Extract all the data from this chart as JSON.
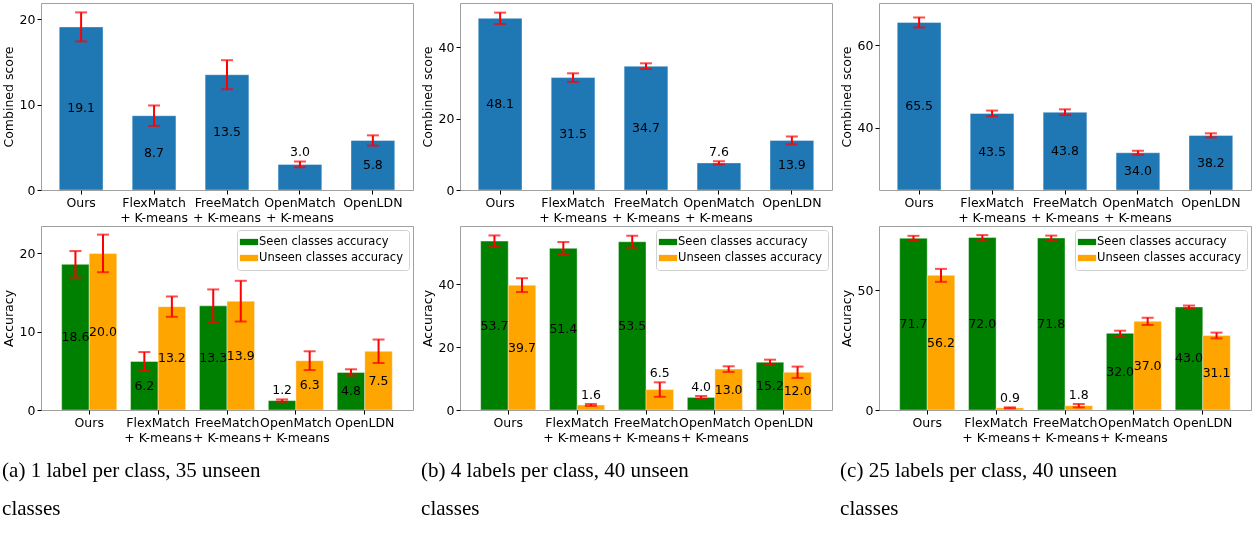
{
  "chart_data": [
    {
      "type": "bar",
      "ylabel": "Combined score",
      "categories": [
        "Ours",
        "FlexMatch\n+ K-means",
        "FreeMatch\n+ K-means",
        "OpenMatch\n+ K-means",
        "OpenLDN"
      ],
      "values": [
        19.1,
        8.7,
        13.5,
        3.0,
        5.8
      ],
      "value_labels": [
        "19.1",
        "8.7",
        "13.5",
        "3.0",
        "5.8"
      ],
      "errors": [
        1.7,
        1.2,
        1.7,
        0.35,
        0.6
      ],
      "color": "#1f77b4",
      "ylim": [
        0,
        21.9
      ],
      "yticks": [
        0,
        10,
        20
      ]
    },
    {
      "type": "bar",
      "ylabel": "Combined score",
      "categories": [
        "Ours",
        "FlexMatch\n+ K-means",
        "FreeMatch\n+ K-means",
        "OpenMatch\n+ K-means",
        "OpenLDN"
      ],
      "values": [
        48.1,
        31.5,
        34.7,
        7.6,
        13.9
      ],
      "value_labels": [
        "48.1",
        "31.5",
        "34.7",
        "7.6",
        "13.9"
      ],
      "errors": [
        1.6,
        1.2,
        0.8,
        0.45,
        1.1
      ],
      "color": "#1f77b4",
      "ylim": [
        0,
        52.4
      ],
      "yticks": [
        0,
        20,
        40
      ]
    },
    {
      "type": "bar",
      "ylabel": "Combined score",
      "categories": [
        "Ours",
        "FlexMatch\n+ K-means",
        "FreeMatch\n+ K-means",
        "OpenMatch\n+ K-means",
        "OpenLDN"
      ],
      "values": [
        65.5,
        43.5,
        43.8,
        34.0,
        38.2
      ],
      "value_labels": [
        "65.5",
        "43.5",
        "43.8",
        "34.0",
        "38.2"
      ],
      "errors": [
        1.2,
        0.7,
        0.7,
        0.5,
        0.5
      ],
      "color": "#1f77b4",
      "ylim": [
        25,
        70.2
      ],
      "yticks": [
        40,
        60
      ]
    },
    {
      "type": "bar",
      "ylabel": "Accuracy",
      "categories": [
        "Ours",
        "FlexMatch\n+ K-means",
        "FreeMatch\n+ K-means",
        "OpenMatch\n+ K-means",
        "OpenLDN"
      ],
      "series": [
        {
          "name": "Seen classes accuracy",
          "color": "#008000",
          "values": [
            18.6,
            6.2,
            13.3,
            1.2,
            4.8
          ],
          "value_labels": [
            "18.6",
            "6.2",
            "13.3",
            "1.2",
            "4.8"
          ],
          "errors": [
            1.7,
            1.2,
            2.1,
            0.15,
            0.4
          ]
        },
        {
          "name": "Unseen classes accuracy",
          "color": "#ffa500",
          "values": [
            20.0,
            13.2,
            13.9,
            6.3,
            7.5
          ],
          "value_labels": [
            "20.0",
            "13.2",
            "13.9",
            "6.3",
            "7.5"
          ],
          "errors": [
            2.4,
            1.3,
            2.6,
            1.2,
            1.5
          ]
        }
      ],
      "ylim": [
        0,
        23.5
      ],
      "yticks": [
        0,
        10,
        20
      ],
      "legend": "top right",
      "annotations": [
        "(a) 1 label per class, 35 unseen classes"
      ]
    },
    {
      "type": "bar",
      "ylabel": "Accuracy",
      "categories": [
        "Ours",
        "FlexMatch\n+ K-means",
        "FreeMatch\n+ K-means",
        "OpenMatch\n+ K-means",
        "OpenLDN"
      ],
      "series": [
        {
          "name": "Seen classes accuracy",
          "color": "#008000",
          "values": [
            53.7,
            51.4,
            53.5,
            4.0,
            15.2
          ],
          "value_labels": [
            "53.7",
            "51.4",
            "53.5",
            "4.0",
            "15.2"
          ],
          "errors": [
            1.8,
            2.0,
            1.9,
            0.45,
            0.8
          ]
        },
        {
          "name": "Unseen classes accuracy",
          "color": "#ffa500",
          "values": [
            39.7,
            1.6,
            6.5,
            13.0,
            12.0
          ],
          "value_labels": [
            "39.7",
            "1.6",
            "6.5",
            "13.0",
            "12.0"
          ],
          "errors": [
            2.2,
            0.3,
            2.3,
            0.9,
            1.8
          ]
        }
      ],
      "ylim": [
        0,
        58.5
      ],
      "yticks": [
        0,
        20,
        40
      ],
      "legend": "top right",
      "annotations": [
        "(b) 4 labels per class, 40 unseen classes"
      ]
    },
    {
      "type": "bar",
      "ylabel": "Accuracy",
      "categories": [
        "Ours",
        "FlexMatch\n+ K-means",
        "FreeMatch\n+ K-means",
        "OpenMatch\n+ K-means",
        "OpenLDN"
      ],
      "series": [
        {
          "name": "Seen classes accuracy",
          "color": "#008000",
          "values": [
            71.7,
            72.0,
            71.8,
            32.0,
            43.0
          ],
          "value_labels": [
            "71.7",
            "72.0",
            "71.8",
            "32.0",
            "43.0"
          ],
          "errors": [
            1.0,
            1.0,
            1.0,
            1.1,
            0.6
          ]
        },
        {
          "name": "Unseen classes accuracy",
          "color": "#ffa500",
          "values": [
            56.2,
            0.9,
            1.8,
            37.0,
            31.1
          ],
          "value_labels": [
            "56.2",
            "0.9",
            "1.8",
            "37.0",
            "31.1"
          ],
          "errors": [
            2.7,
            0.2,
            0.7,
            1.5,
            1.2
          ]
        }
      ],
      "ylim": [
        0,
        76.8
      ],
      "yticks": [
        0,
        50
      ],
      "legend": "top right",
      "annotations": [
        "(c) 25 labels per class, 40 unseen classes"
      ]
    }
  ]
}
